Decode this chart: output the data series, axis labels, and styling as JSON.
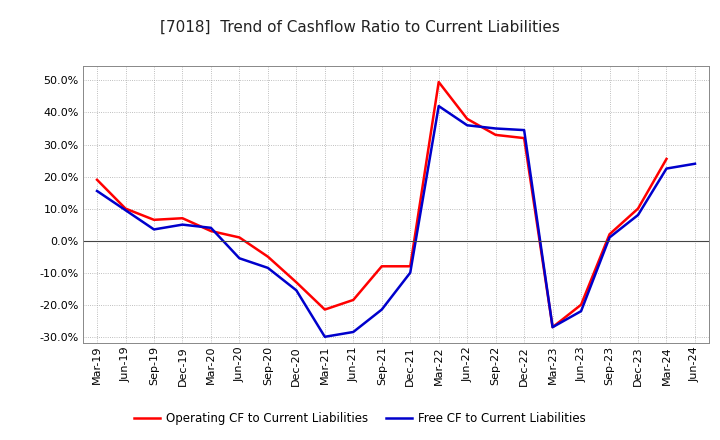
{
  "title": "[7018]  Trend of Cashflow Ratio to Current Liabilities",
  "x_labels": [
    "Mar-19",
    "Jun-19",
    "Sep-19",
    "Dec-19",
    "Mar-20",
    "Jun-20",
    "Sep-20",
    "Dec-20",
    "Mar-21",
    "Jun-21",
    "Sep-21",
    "Dec-21",
    "Mar-22",
    "Jun-22",
    "Sep-22",
    "Dec-22",
    "Mar-23",
    "Jun-23",
    "Sep-23",
    "Dec-23",
    "Mar-24",
    "Jun-24"
  ],
  "operating_cf": [
    0.19,
    0.1,
    0.065,
    0.07,
    0.03,
    0.01,
    -0.05,
    -0.13,
    -0.215,
    -0.185,
    -0.08,
    -0.08,
    0.495,
    0.38,
    0.33,
    0.32,
    -0.27,
    -0.2,
    0.02,
    0.1,
    0.255,
    null
  ],
  "free_cf": [
    0.155,
    0.095,
    0.035,
    0.05,
    0.04,
    -0.055,
    -0.085,
    -0.155,
    -0.3,
    -0.285,
    -0.215,
    -0.1,
    0.42,
    0.36,
    0.35,
    0.345,
    -0.27,
    -0.22,
    0.01,
    0.08,
    0.225,
    0.24
  ],
  "operating_color": "#FF0000",
  "free_color": "#0000CC",
  "ylim": [
    -0.32,
    0.545
  ],
  "yticks": [
    -0.3,
    -0.2,
    -0.1,
    0.0,
    0.1,
    0.2,
    0.3,
    0.4,
    0.5
  ],
  "legend_operating": "Operating CF to Current Liabilities",
  "legend_free": "Free CF to Current Liabilities",
  "background_color": "#FFFFFF",
  "plot_bg_color": "#FFFFFF",
  "title_fontsize": 11,
  "axis_fontsize": 8,
  "linewidth": 1.8
}
